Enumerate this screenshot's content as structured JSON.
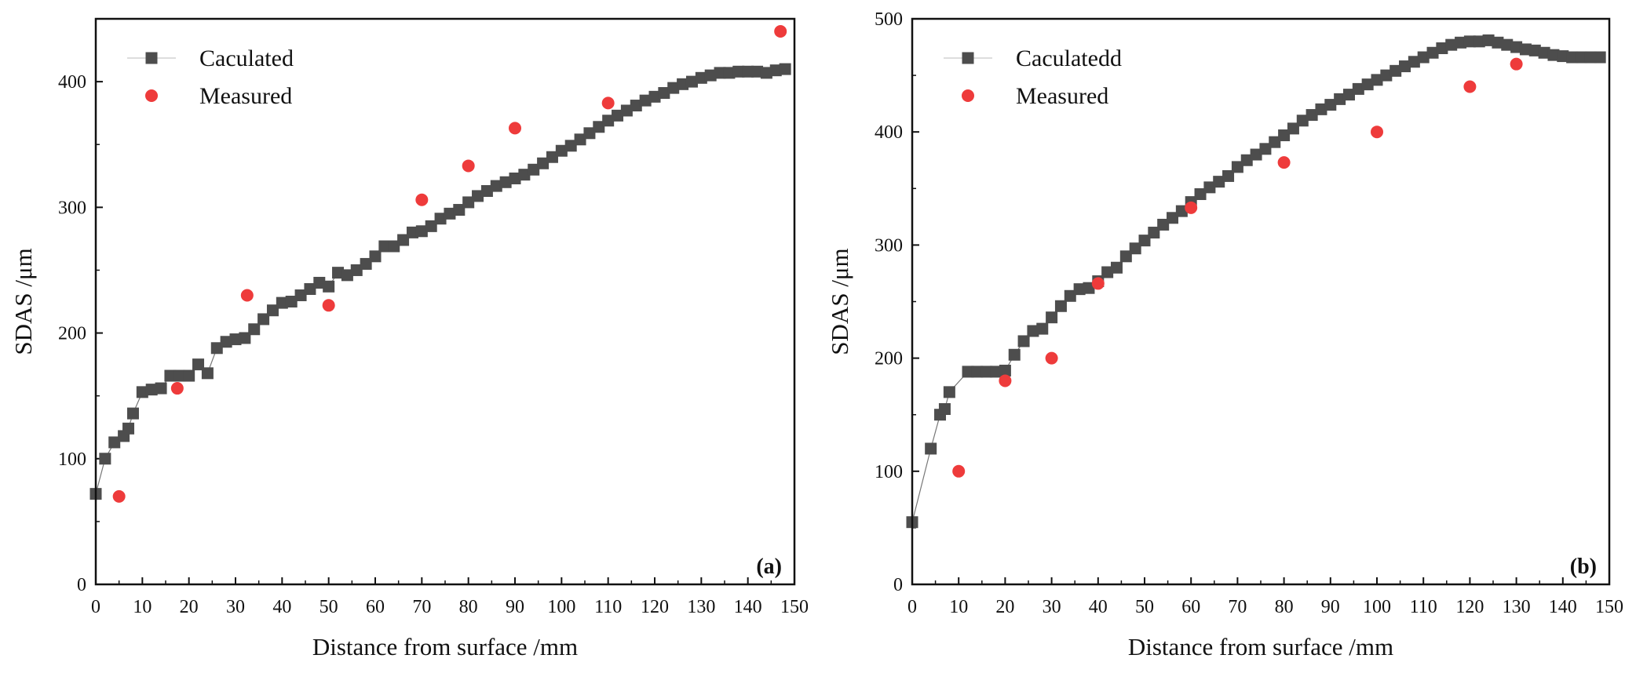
{
  "colors": {
    "calculated": "#4d4d4d",
    "measured": "#ee3b3b",
    "axis": "#111111"
  },
  "chart_data": [
    {
      "type": "scatter",
      "panel_label": "(a)",
      "xlabel": "Distance from surface /mm",
      "ylabel": "SDAS /μm",
      "xlim": [
        0,
        150
      ],
      "ylim": [
        0,
        450
      ],
      "xticks": [
        0,
        10,
        20,
        30,
        40,
        50,
        60,
        70,
        80,
        90,
        100,
        110,
        120,
        130,
        140,
        150
      ],
      "yticks": [
        0,
        100,
        200,
        300,
        400
      ],
      "legend_position": "top-left",
      "series": [
        {
          "name": "Caculated",
          "marker": "square",
          "connected": true,
          "x": [
            0,
            2,
            4,
            6,
            7,
            8,
            10,
            12,
            14,
            16,
            18,
            20,
            22,
            24,
            26,
            28,
            30,
            32,
            34,
            36,
            38,
            40,
            42,
            44,
            46,
            48,
            50,
            52,
            54,
            56,
            58,
            60,
            62,
            64,
            66,
            68,
            70,
            72,
            74,
            76,
            78,
            80,
            82,
            84,
            86,
            88,
            90,
            92,
            94,
            96,
            98,
            100,
            102,
            104,
            106,
            108,
            110,
            112,
            114,
            116,
            118,
            120,
            122,
            124,
            126,
            128,
            130,
            132,
            134,
            136,
            138,
            140,
            142,
            144,
            146,
            148
          ],
          "y": [
            72,
            100,
            113,
            118,
            124,
            136,
            153,
            155,
            156,
            166,
            166,
            166,
            175,
            168,
            188,
            193,
            195,
            196,
            203,
            211,
            218,
            224,
            225,
            230,
            235,
            240,
            237,
            248,
            246,
            250,
            255,
            261,
            269,
            269,
            274,
            280,
            281,
            285,
            291,
            295,
            298,
            304,
            309,
            313,
            317,
            320,
            323,
            326,
            330,
            335,
            340,
            345,
            349,
            354,
            359,
            364,
            369,
            373,
            377,
            381,
            385,
            388,
            391,
            395,
            398,
            400,
            403,
            405,
            407,
            407,
            408,
            408,
            408,
            407,
            409,
            410
          ]
        },
        {
          "name": "Measured",
          "marker": "circle",
          "connected": false,
          "x": [
            5,
            17.5,
            32.5,
            50,
            70,
            80,
            90,
            110,
            147
          ],
          "y": [
            70,
            156,
            230,
            222,
            306,
            333,
            363,
            383,
            440
          ]
        }
      ]
    },
    {
      "type": "scatter",
      "panel_label": "(b)",
      "xlabel": "Distance from surface /mm",
      "ylabel": "SDAS /μm",
      "xlim": [
        0,
        150
      ],
      "ylim": [
        0,
        500
      ],
      "xticks": [
        0,
        10,
        20,
        30,
        40,
        50,
        60,
        70,
        80,
        90,
        100,
        110,
        120,
        130,
        140,
        150
      ],
      "yticks": [
        0,
        100,
        200,
        300,
        400,
        500
      ],
      "legend_position": "top-left",
      "series": [
        {
          "name": "Caculatedd",
          "marker": "square",
          "connected": true,
          "x": [
            0,
            4,
            6,
            7,
            8,
            12,
            14,
            16,
            18,
            20,
            22,
            24,
            26,
            28,
            30,
            32,
            34,
            36,
            38,
            40,
            42,
            44,
            46,
            48,
            50,
            52,
            54,
            56,
            58,
            60,
            62,
            64,
            66,
            68,
            70,
            72,
            74,
            76,
            78,
            80,
            82,
            84,
            86,
            88,
            90,
            92,
            94,
            96,
            98,
            100,
            102,
            104,
            106,
            108,
            110,
            112,
            114,
            116,
            118,
            120,
            122,
            124,
            126,
            128,
            130,
            132,
            134,
            136,
            138,
            140,
            142,
            144,
            146,
            148
          ],
          "y": [
            55,
            120,
            150,
            155,
            170,
            188,
            188,
            188,
            188,
            189,
            203,
            215,
            224,
            226,
            236,
            246,
            255,
            261,
            262,
            268,
            276,
            280,
            290,
            297,
            304,
            311,
            318,
            324,
            330,
            338,
            345,
            351,
            356,
            361,
            369,
            375,
            380,
            385,
            391,
            397,
            403,
            410,
            415,
            420,
            424,
            429,
            433,
            438,
            442,
            446,
            450,
            454,
            458,
            462,
            466,
            470,
            474,
            477,
            479,
            480,
            480,
            481,
            479,
            477,
            475,
            473,
            472,
            470,
            468,
            467,
            466,
            466,
            466,
            466
          ]
        },
        {
          "name": "Measured",
          "marker": "circle",
          "connected": false,
          "x": [
            10,
            20,
            30,
            40,
            60,
            80,
            100,
            120,
            130
          ],
          "y": [
            100,
            180,
            200,
            266,
            333,
            373,
            400,
            440,
            460
          ]
        }
      ]
    }
  ]
}
